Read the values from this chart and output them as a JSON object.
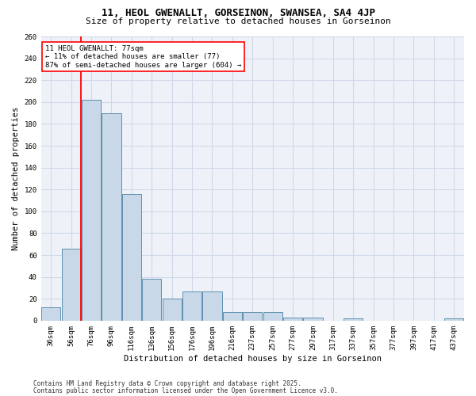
{
  "title": "11, HEOL GWENALLT, GORSEINON, SWANSEA, SA4 4JP",
  "subtitle": "Size of property relative to detached houses in Gorseinon",
  "xlabel": "Distribution of detached houses by size in Gorseinon",
  "ylabel": "Number of detached properties",
  "categories": [
    "36sqm",
    "56sqm",
    "76sqm",
    "96sqm",
    "116sqm",
    "136sqm",
    "156sqm",
    "176sqm",
    "196sqm",
    "216sqm",
    "237sqm",
    "257sqm",
    "277sqm",
    "297sqm",
    "317sqm",
    "337sqm",
    "357sqm",
    "377sqm",
    "397sqm",
    "417sqm",
    "437sqm"
  ],
  "values": [
    12,
    66,
    202,
    190,
    116,
    38,
    20,
    27,
    27,
    8,
    8,
    8,
    3,
    3,
    0,
    2,
    0,
    0,
    0,
    0,
    2
  ],
  "bar_color": "#c8d8e8",
  "bar_edge_color": "#6090b0",
  "grid_color": "#d0d8e8",
  "background_color": "#eef2f8",
  "red_line_bin_index": 2,
  "annotation_line1": "11 HEOL GWENALLT: 77sqm",
  "annotation_line2": "← 11% of detached houses are smaller (77)",
  "annotation_line3": "87% of semi-detached houses are larger (604) →",
  "footnote_line1": "Contains HM Land Registry data © Crown copyright and database right 2025.",
  "footnote_line2": "Contains public sector information licensed under the Open Government Licence v3.0.",
  "ylim_max": 260,
  "yticks": [
    0,
    20,
    40,
    60,
    80,
    100,
    120,
    140,
    160,
    180,
    200,
    220,
    240,
    260
  ],
  "title_fontsize": 9,
  "subtitle_fontsize": 8,
  "ylabel_fontsize": 7.5,
  "xlabel_fontsize": 7.5,
  "tick_fontsize": 6.5,
  "annot_fontsize": 6.5,
  "footnote_fontsize": 5.5
}
